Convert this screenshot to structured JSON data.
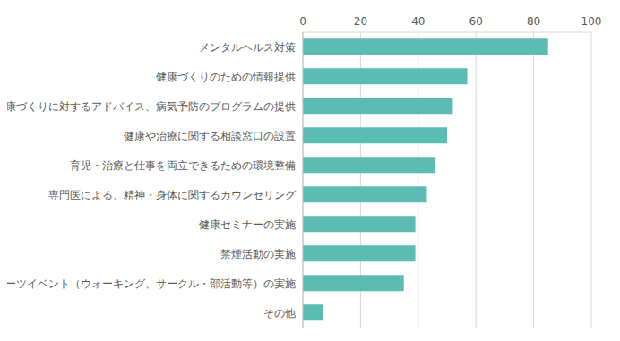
{
  "chart_data": {
    "type": "bar",
    "orientation": "horizontal",
    "categories": [
      "メンタルヘルス対策",
      "健康づくりのための情報提供",
      "健康づくりに対するアドバイス、病気予防のプログラムの提供",
      "健康や治療に関する相談窓口の設置",
      "育児・治療と仕事を両立できるための環境整備",
      "専門医による、精神・身体に関するカウンセリング",
      "健康セミナーの実施",
      "禁煙活動の実施",
      "スポーツイベント（ウォーキング、サークル・部活動等）の実施",
      "その他"
    ],
    "values": [
      85,
      57,
      52,
      50,
      46,
      43,
      39,
      39,
      35,
      7
    ],
    "color": "#5bbcb3",
    "xlim": [
      0,
      100
    ],
    "xticks": [
      0,
      20,
      40,
      60,
      80,
      100
    ],
    "grid": true
  }
}
